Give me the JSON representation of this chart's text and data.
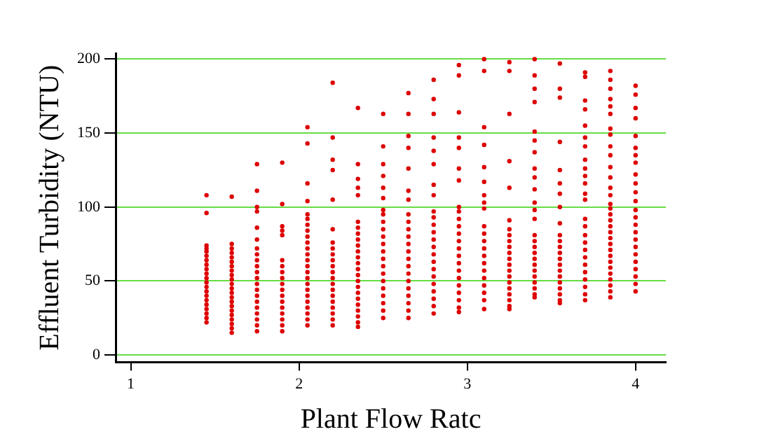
{
  "chart_data": {
    "type": "scatter",
    "xlabel": "Plant Flow Ratc",
    "ylabel": "Effluent Turbidity (NTU)",
    "xlim": [
      0.91,
      4.18
    ],
    "xticks": [
      1,
      2,
      3,
      4
    ],
    "ylim": [
      -5,
      204
    ],
    "yticks": [
      0,
      50,
      100,
      150,
      200
    ],
    "grid": "y",
    "legend": false,
    "marker": "circle",
    "color": "#dd0000",
    "x": [
      1.45,
      1.45,
      1.45,
      1.45,
      1.45,
      1.45,
      1.45,
      1.45,
      1.45,
      1.45,
      1.45,
      1.45,
      1.45,
      1.45,
      1.45,
      1.45,
      1.45,
      1.45,
      1.45,
      1.45,
      1.45,
      1.6,
      1.6,
      1.6,
      1.6,
      1.6,
      1.6,
      1.6,
      1.6,
      1.6,
      1.6,
      1.6,
      1.6,
      1.6,
      1.6,
      1.6,
      1.6,
      1.6,
      1.6,
      1.6,
      1.6,
      1.6,
      1.6,
      1.75,
      1.75,
      1.75,
      1.75,
      1.75,
      1.75,
      1.75,
      1.75,
      1.75,
      1.75,
      1.75,
      1.75,
      1.75,
      1.75,
      1.75,
      1.75,
      1.75,
      1.75,
      1.75,
      1.75,
      1.75,
      1.9,
      1.9,
      1.9,
      1.9,
      1.9,
      1.9,
      1.9,
      1.9,
      1.9,
      1.9,
      1.9,
      1.9,
      1.9,
      1.9,
      1.9,
      1.9,
      1.9,
      1.9,
      2.05,
      2.05,
      2.05,
      2.05,
      2.05,
      2.05,
      2.05,
      2.05,
      2.05,
      2.05,
      2.05,
      2.05,
      2.05,
      2.05,
      2.05,
      2.05,
      2.05,
      2.05,
      2.05,
      2.05,
      2.05,
      2.05,
      2.05,
      2.05,
      2.2,
      2.2,
      2.2,
      2.2,
      2.2,
      2.2,
      2.2,
      2.2,
      2.2,
      2.2,
      2.2,
      2.2,
      2.2,
      2.2,
      2.2,
      2.2,
      2.2,
      2.2,
      2.2,
      2.2,
      2.2,
      2.35,
      2.35,
      2.35,
      2.35,
      2.35,
      2.35,
      2.35,
      2.35,
      2.35,
      2.35,
      2.35,
      2.35,
      2.35,
      2.35,
      2.35,
      2.35,
      2.35,
      2.35,
      2.35,
      2.35,
      2.35,
      2.35,
      2.35,
      2.35,
      2.5,
      2.5,
      2.5,
      2.5,
      2.5,
      2.5,
      2.5,
      2.5,
      2.5,
      2.5,
      2.5,
      2.5,
      2.5,
      2.5,
      2.5,
      2.5,
      2.5,
      2.5,
      2.5,
      2.5,
      2.5,
      2.5,
      2.65,
      2.65,
      2.65,
      2.65,
      2.65,
      2.65,
      2.65,
      2.65,
      2.65,
      2.65,
      2.65,
      2.65,
      2.65,
      2.65,
      2.65,
      2.65,
      2.65,
      2.65,
      2.65,
      2.65,
      2.65,
      2.65,
      2.8,
      2.8,
      2.8,
      2.8,
      2.8,
      2.8,
      2.8,
      2.8,
      2.8,
      2.8,
      2.8,
      2.8,
      2.8,
      2.8,
      2.8,
      2.8,
      2.8,
      2.8,
      2.8,
      2.8,
      2.8,
      2.8,
      2.8,
      2.95,
      2.95,
      2.95,
      2.95,
      2.95,
      2.95,
      2.95,
      2.95,
      2.95,
      2.95,
      2.95,
      2.95,
      2.95,
      2.95,
      2.95,
      2.95,
      2.95,
      2.95,
      2.95,
      2.95,
      2.95,
      2.95,
      2.95,
      3.1,
      3.1,
      3.1,
      3.1,
      3.1,
      3.1,
      3.1,
      3.1,
      3.1,
      3.1,
      3.1,
      3.1,
      3.1,
      3.1,
      3.1,
      3.1,
      3.1,
      3.1,
      3.1,
      3.1,
      3.1,
      3.25,
      3.25,
      3.25,
      3.25,
      3.25,
      3.25,
      3.25,
      3.25,
      3.25,
      3.25,
      3.25,
      3.25,
      3.25,
      3.25,
      3.25,
      3.25,
      3.25,
      3.25,
      3.25,
      3.25,
      3.25,
      3.4,
      3.4,
      3.4,
      3.4,
      3.4,
      3.4,
      3.4,
      3.4,
      3.4,
      3.4,
      3.4,
      3.4,
      3.4,
      3.4,
      3.4,
      3.4,
      3.4,
      3.4,
      3.4,
      3.4,
      3.4,
      3.4,
      3.4,
      3.4,
      3.4,
      3.55,
      3.55,
      3.55,
      3.55,
      3.55,
      3.55,
      3.55,
      3.55,
      3.55,
      3.55,
      3.55,
      3.55,
      3.55,
      3.55,
      3.55,
      3.55,
      3.55,
      3.55,
      3.55,
      3.55,
      3.55,
      3.55,
      3.7,
      3.7,
      3.7,
      3.7,
      3.7,
      3.7,
      3.7,
      3.7,
      3.7,
      3.7,
      3.7,
      3.7,
      3.7,
      3.7,
      3.7,
      3.7,
      3.7,
      3.7,
      3.7,
      3.7,
      3.7,
      3.7,
      3.7,
      3.7,
      3.7,
      3.85,
      3.85,
      3.85,
      3.85,
      3.85,
      3.85,
      3.85,
      3.85,
      3.85,
      3.85,
      3.85,
      3.85,
      3.85,
      3.85,
      3.85,
      3.85,
      3.85,
      3.85,
      3.85,
      3.85,
      3.85,
      3.85,
      3.85,
      3.85,
      3.85,
      3.85,
      3.85,
      3.85,
      3.85,
      3.85,
      3.85,
      4.0,
      4.0,
      4.0,
      4.0,
      4.0,
      4.0,
      4.0,
      4.0,
      4.0,
      4.0,
      4.0,
      4.0,
      4.0,
      4.0,
      4.0,
      4.0,
      4.0,
      4.0,
      4.0,
      4.0,
      4.0,
      4.0,
      4.0,
      4.0
    ],
    "values": [
      108,
      96,
      74,
      72,
      70,
      67,
      64,
      61,
      58,
      55,
      52,
      49,
      46,
      43,
      40,
      37,
      34,
      31,
      28,
      25,
      22,
      107,
      75,
      72,
      69,
      66,
      63,
      60,
      57,
      54,
      51,
      48,
      45,
      42,
      39,
      36,
      33,
      30,
      27,
      24,
      21,
      18,
      15,
      129,
      111,
      100,
      97,
      86,
      78,
      72,
      68,
      64,
      60,
      56,
      52,
      48,
      44,
      40,
      36,
      32,
      28,
      24,
      20,
      16,
      130,
      102,
      87,
      84,
      81,
      64,
      60,
      56,
      52,
      48,
      44,
      40,
      36,
      32,
      28,
      24,
      20,
      16,
      154,
      143,
      116,
      104,
      95,
      92,
      88,
      84,
      80,
      76,
      72,
      68,
      64,
      60,
      56,
      52,
      48,
      44,
      40,
      36,
      32,
      28,
      24,
      20,
      184,
      147,
      132,
      125,
      105,
      85,
      76,
      72,
      68,
      64,
      60,
      56,
      52,
      48,
      44,
      40,
      36,
      32,
      28,
      24,
      20,
      167,
      129,
      119,
      113,
      108,
      90,
      86,
      82,
      78,
      74,
      70,
      66,
      62,
      58,
      54,
      50,
      46,
      42,
      38,
      34,
      30,
      26,
      22,
      19,
      163,
      141,
      129,
      121,
      113,
      106,
      98,
      95,
      90,
      85,
      80,
      75,
      70,
      65,
      60,
      55,
      50,
      45,
      40,
      35,
      30,
      25,
      177,
      163,
      148,
      140,
      126,
      111,
      105,
      95,
      90,
      85,
      80,
      75,
      70,
      65,
      60,
      55,
      50,
      45,
      40,
      35,
      30,
      25,
      186,
      173,
      163,
      147,
      138,
      129,
      115,
      108,
      97,
      93,
      88,
      83,
      78,
      73,
      68,
      63,
      58,
      53,
      48,
      43,
      38,
      33,
      28,
      196,
      189,
      164,
      147,
      140,
      126,
      118,
      100,
      97,
      92,
      87,
      82,
      77,
      72,
      67,
      62,
      57,
      52,
      47,
      42,
      37,
      32,
      29,
      200,
      192,
      154,
      142,
      127,
      117,
      108,
      103,
      99,
      87,
      82,
      77,
      72,
      67,
      62,
      57,
      52,
      47,
      42,
      37,
      31,
      198,
      192,
      163,
      131,
      113,
      91,
      85,
      81,
      77,
      73,
      69,
      65,
      61,
      57,
      53,
      49,
      45,
      41,
      37,
      33,
      31,
      200,
      189,
      180,
      171,
      151,
      145,
      137,
      126,
      120,
      112,
      103,
      98,
      92,
      81,
      77,
      73,
      69,
      65,
      61,
      57,
      53,
      49,
      45,
      41,
      39,
      197,
      180,
      174,
      144,
      125,
      116,
      109,
      100,
      89,
      81,
      77,
      73,
      69,
      65,
      61,
      57,
      53,
      49,
      45,
      41,
      37,
      35,
      191,
      188,
      172,
      166,
      155,
      147,
      141,
      132,
      126,
      121,
      116,
      109,
      105,
      92,
      87,
      81,
      76,
      71,
      66,
      61,
      56,
      51,
      46,
      41,
      37,
      192,
      186,
      180,
      173,
      168,
      163,
      153,
      149,
      141,
      135,
      127,
      120,
      113,
      108,
      102,
      99,
      95,
      91,
      87,
      83,
      79,
      75,
      71,
      67,
      63,
      59,
      55,
      51,
      47,
      43,
      39,
      182,
      176,
      167,
      160,
      148,
      140,
      135,
      130,
      122,
      116,
      110,
      104,
      98,
      93,
      88,
      83,
      78,
      73,
      68,
      63,
      58,
      53,
      48,
      43
    ]
  }
}
